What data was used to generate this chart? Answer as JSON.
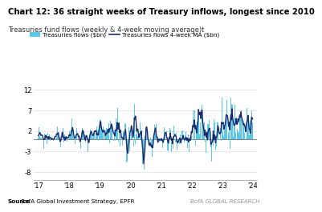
{
  "title": "Chart 12: 36 straight weeks of Treasury inflows, longest since 2010",
  "subtitle": "Treasuries fund flows (weekly & 4-week moving average)t",
  "source_bold": "Source",
  "source_rest": " BofA Global Investment Strategy, EPFR",
  "branding": "BofA GLOBAL RESEARCH",
  "legend_bar": "Treasuries flows ($bn)",
  "legend_line": "Treasuries flows 4-week MA ($bn)",
  "yticks": [
    -8,
    -3,
    2,
    7,
    12
  ],
  "xtick_labels": [
    "'17",
    "'18",
    "'19",
    "'20",
    "'21",
    "'22",
    "'23",
    "'24"
  ],
  "bar_color": "#5bc8e8",
  "line_color": "#1a2a6c",
  "ylim": [
    -10,
    14.5
  ],
  "xlim": [
    -0.15,
    7.15
  ],
  "title_color": "#000000",
  "subtitle_color": "#333333",
  "bg_color": "#ffffff"
}
